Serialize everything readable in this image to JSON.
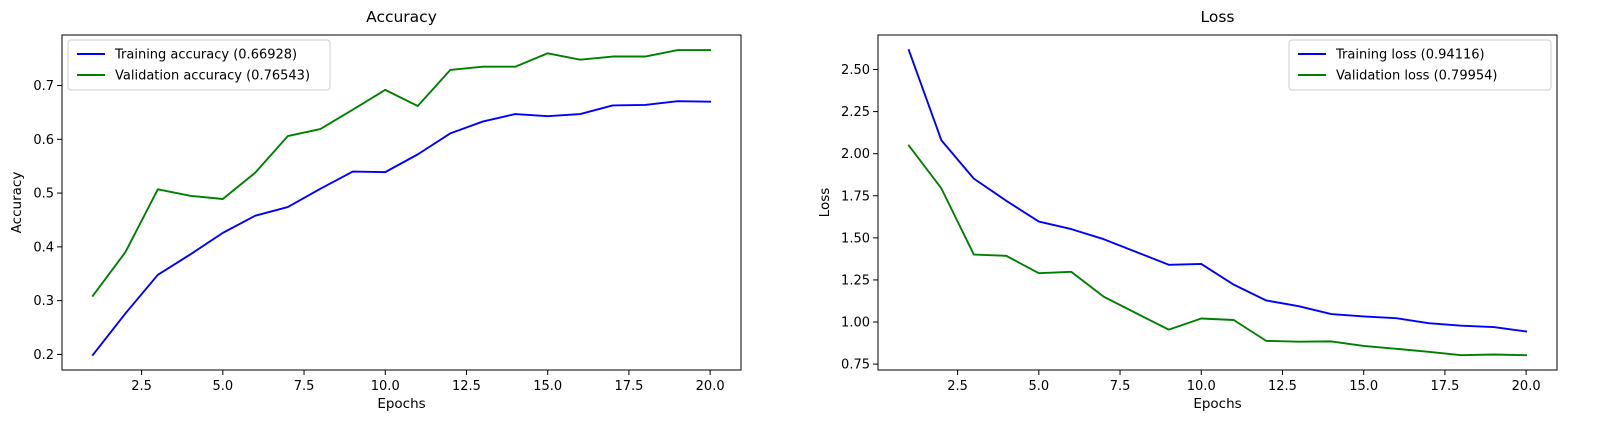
{
  "chart_data": [
    {
      "type": "line",
      "title": "Accuracy",
      "xlabel": "Epochs",
      "ylabel": "Accuracy",
      "xlim": [
        0.05,
        20.95
      ],
      "ylim": [
        0.171,
        0.794
      ],
      "xticks": [
        2.5,
        5.0,
        7.5,
        10.0,
        12.5,
        15.0,
        17.5,
        20.0
      ],
      "xtick_labels": [
        "2.5",
        "5.0",
        "7.5",
        "10.0",
        "12.5",
        "15.0",
        "17.5",
        "20.0"
      ],
      "yticks": [
        0.2,
        0.3,
        0.4,
        0.5,
        0.6,
        0.7
      ],
      "ytick_labels": [
        "0.2",
        "0.3",
        "0.4",
        "0.5",
        "0.6",
        "0.7"
      ],
      "grid": false,
      "legend": "top-left",
      "x": [
        1,
        2,
        3,
        4,
        5,
        6,
        7,
        8,
        9,
        10,
        11,
        12,
        13,
        14,
        15,
        16,
        17,
        18,
        19,
        20
      ],
      "series": [
        {
          "name": "Training accuracy (0.66928)",
          "color": "#0000ff",
          "values": [
            0.199,
            0.276,
            0.348,
            0.386,
            0.426,
            0.458,
            0.474,
            0.508,
            0.54,
            0.539,
            0.572,
            0.611,
            0.633,
            0.647,
            0.643,
            0.647,
            0.663,
            0.664,
            0.671,
            0.67
          ]
        },
        {
          "name": "Validation accuracy (0.76543)",
          "color": "#008000",
          "values": [
            0.309,
            0.39,
            0.507,
            0.495,
            0.489,
            0.538,
            0.606,
            0.619,
            0.655,
            0.692,
            0.662,
            0.729,
            0.735,
            0.735,
            0.76,
            0.748,
            0.754,
            0.754,
            0.766,
            0.766
          ]
        }
      ]
    },
    {
      "type": "line",
      "title": "Loss",
      "xlabel": "Epochs",
      "ylabel": "Loss",
      "xlim": [
        0.05,
        20.95
      ],
      "ylim": [
        0.715,
        2.705
      ],
      "xticks": [
        2.5,
        5.0,
        7.5,
        10.0,
        12.5,
        15.0,
        17.5,
        20.0
      ],
      "xtick_labels": [
        "2.5",
        "5.0",
        "7.5",
        "10.0",
        "12.5",
        "15.0",
        "17.5",
        "20.0"
      ],
      "yticks": [
        0.75,
        1.0,
        1.25,
        1.5,
        1.75,
        2.0,
        2.25,
        2.5
      ],
      "ytick_labels": [
        "0.75",
        "1.00",
        "1.25",
        "1.50",
        "1.75",
        "2.00",
        "2.25",
        "2.50"
      ],
      "grid": false,
      "legend": "top-right",
      "x": [
        1,
        2,
        3,
        4,
        5,
        6,
        7,
        8,
        9,
        10,
        11,
        12,
        13,
        14,
        15,
        16,
        17,
        18,
        19,
        20
      ],
      "series": [
        {
          "name": "Training loss (0.94116)",
          "color": "#0000ff",
          "values": [
            2.615,
            2.08,
            1.852,
            1.72,
            1.597,
            1.552,
            1.492,
            1.416,
            1.34,
            1.345,
            1.222,
            1.128,
            1.094,
            1.047,
            1.033,
            1.023,
            0.993,
            0.978,
            0.97,
            0.944
          ]
        },
        {
          "name": "Validation loss (0.79954)",
          "color": "#008000",
          "values": [
            2.048,
            1.794,
            1.401,
            1.393,
            1.29,
            1.298,
            1.15,
            1.052,
            0.955,
            1.021,
            1.012,
            0.888,
            0.883,
            0.885,
            0.858,
            0.841,
            0.823,
            0.803,
            0.807,
            0.803
          ]
        }
      ]
    }
  ]
}
